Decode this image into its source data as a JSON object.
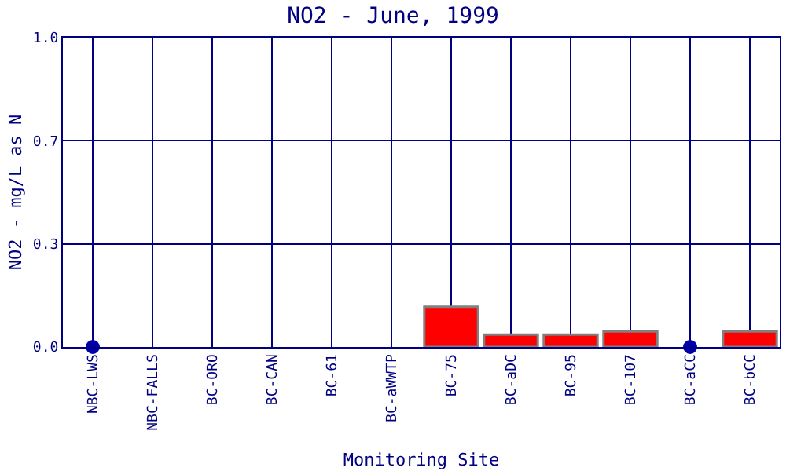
{
  "chart_data": {
    "type": "bar",
    "title": "NO2 - June, 1999",
    "xlabel": "Monitoring Site",
    "ylabel": "NO2 - mg/L as N",
    "categories": [
      "NBC-LWS",
      "NBC-FALLS",
      "BC-ORO",
      "BC-CAN",
      "BC-61",
      "BC-aWWTP",
      "BC-75",
      "BC-aDC",
      "BC-95",
      "BC-107",
      "BC-aCC",
      "BC-bCC"
    ],
    "series": [
      {
        "color": "#ff0000",
        "values": [
          null,
          null,
          null,
          null,
          null,
          null,
          0.13,
          0.04,
          0.04,
          0.05,
          null,
          0.05
        ]
      },
      {
        "type": "scatter",
        "color": "#0000aa",
        "x": [
          "NBC-LWS",
          "BC-aCC"
        ],
        "values": [
          0,
          0
        ],
        "marker": "circle"
      }
    ],
    "ylim": [
      0,
      1.0
    ],
    "yticks": [
      {
        "value": 0,
        "label": "0.0"
      },
      {
        "value": 0.333,
        "label": "0.3"
      },
      {
        "value": 0.667,
        "label": "0.7"
      },
      {
        "value": 1,
        "label": "1.0"
      }
    ],
    "grid": true,
    "legend": false
  }
}
